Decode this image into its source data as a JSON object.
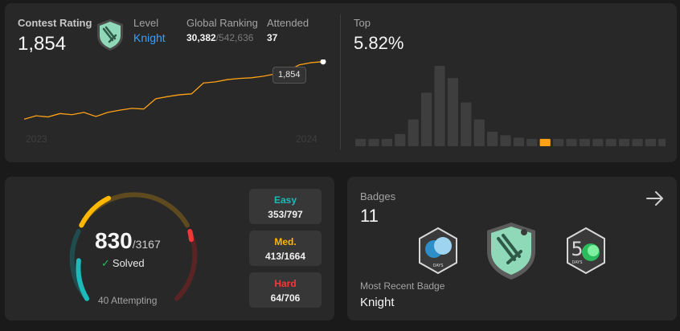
{
  "contest": {
    "rating_label": "Contest Rating",
    "rating_value": "1,854",
    "level_label": "Level",
    "level_value": "Knight",
    "ranking_label": "Global Ranking",
    "ranking_value": "30,382",
    "ranking_total": "/542,636",
    "attended_label": "Attended",
    "attended_value": "37",
    "year_start": "2023",
    "year_end": "2024",
    "tooltip": "1,854",
    "top_label": "Top",
    "top_value": "5.82%",
    "accent": "#ffa116",
    "rating_history": [
      1600,
      1615,
      1610,
      1625,
      1620,
      1630,
      1612,
      1630,
      1640,
      1648,
      1645,
      1690,
      1700,
      1708,
      1712,
      1760,
      1765,
      1775,
      1780,
      1783,
      1790,
      1800,
      1812,
      1840,
      1850,
      1854
    ],
    "histogram": [
      6,
      6,
      6,
      10,
      22,
      44,
      66,
      56,
      36,
      22,
      12,
      9,
      7,
      6,
      6,
      6,
      6,
      6,
      6,
      6,
      6,
      6,
      6,
      6
    ],
    "histogram_highlight_index": 14
  },
  "solved": {
    "count": "830",
    "total": "/3167",
    "label": "Solved",
    "attempting": "40 Attempting",
    "easy": {
      "name": "Easy",
      "value": "353/797",
      "color": "#1cbaba"
    },
    "medium": {
      "name": "Med.",
      "value": "413/1664",
      "color": "#ffb700"
    },
    "hard": {
      "name": "Hard",
      "value": "64/706",
      "color": "#f63737"
    }
  },
  "badges": {
    "label": "Badges",
    "count": "11",
    "recent_label": "Most Recent Badge",
    "recent_value": "Knight",
    "icons": [
      "days-badge-icon",
      "knight-badge-icon",
      "fifty-days-badge-icon"
    ]
  }
}
